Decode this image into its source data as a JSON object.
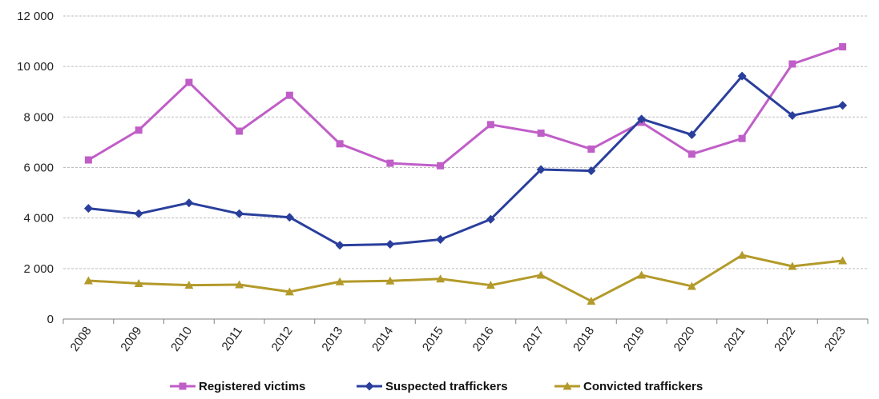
{
  "chart_data": {
    "type": "line",
    "title": "",
    "xlabel": "",
    "ylabel": "",
    "categories": [
      "2008",
      "2009",
      "2010",
      "2011",
      "2012",
      "2013",
      "2014",
      "2015",
      "2016",
      "2017",
      "2018",
      "2019",
      "2020",
      "2021",
      "2022",
      "2023"
    ],
    "ylim": [
      0,
      12000
    ],
    "yticks": [
      0,
      2000,
      4000,
      6000,
      8000,
      10000,
      12000
    ],
    "ytick_labels": [
      "0",
      "2 000",
      "4 000",
      "6 000",
      "8 000",
      "10 000",
      "12 000"
    ],
    "grid": true,
    "legend_position": "bottom",
    "series": [
      {
        "name": "Registered victims",
        "color": "#c05ec8",
        "marker": "square",
        "values": [
          6300,
          7480,
          9370,
          7440,
          8860,
          6940,
          6170,
          6070,
          7700,
          7360,
          6730,
          7790,
          6530,
          7150,
          10100,
          10780
        ]
      },
      {
        "name": "Suspected traffickers",
        "color": "#2a3f9c",
        "marker": "diamond",
        "values": [
          4380,
          4170,
          4600,
          4170,
          4030,
          2920,
          2960,
          3150,
          3950,
          5920,
          5870,
          7920,
          7300,
          9620,
          8060,
          8460
        ]
      },
      {
        "name": "Convicted traffickers",
        "color": "#b39a2a",
        "marker": "triangle",
        "values": [
          1520,
          1410,
          1340,
          1360,
          1080,
          1480,
          1510,
          1590,
          1340,
          1740,
          710,
          1740,
          1300,
          2530,
          2090,
          2310
        ]
      }
    ]
  }
}
